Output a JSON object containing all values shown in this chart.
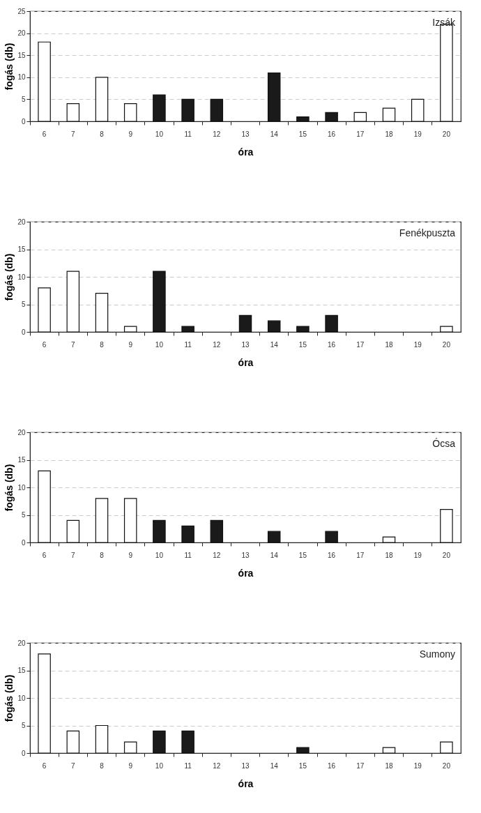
{
  "chart_data": [
    {
      "type": "bar",
      "categories": [
        "6",
        "7",
        "8",
        "9",
        "10",
        "11",
        "12",
        "13",
        "14",
        "15",
        "16",
        "17",
        "18",
        "19",
        "20"
      ],
      "values": [
        18,
        4,
        10,
        4,
        6,
        5,
        5,
        0,
        11,
        1,
        2,
        2,
        3,
        5,
        22
      ],
      "colors": [
        "#ffffff",
        "#ffffff",
        "#ffffff",
        "#ffffff",
        "#1a1a1a",
        "#1a1a1a",
        "#1a1a1a",
        "#1a1a1a",
        "#1a1a1a",
        "#1a1a1a",
        "#1a1a1a",
        "#ffffff",
        "#ffffff",
        "#ffffff",
        "#ffffff"
      ],
      "xlabel": "óra",
      "ylabel": "fogás (db)",
      "ylim": [
        0,
        25
      ],
      "yticks": [
        0,
        5,
        10,
        15,
        20,
        25
      ],
      "grid": "y",
      "annotations": [
        "Izsák"
      ]
    },
    {
      "type": "bar",
      "categories": [
        "6",
        "7",
        "8",
        "9",
        "10",
        "11",
        "12",
        "13",
        "14",
        "15",
        "16",
        "17",
        "18",
        "19",
        "20"
      ],
      "values": [
        8,
        11,
        7,
        1,
        11,
        1,
        0,
        3,
        2,
        1,
        3,
        0,
        0,
        0,
        1
      ],
      "colors": [
        "#ffffff",
        "#ffffff",
        "#ffffff",
        "#ffffff",
        "#1a1a1a",
        "#1a1a1a",
        "#1a1a1a",
        "#1a1a1a",
        "#1a1a1a",
        "#1a1a1a",
        "#1a1a1a",
        "#ffffff",
        "#ffffff",
        "#ffffff",
        "#ffffff"
      ],
      "xlabel": "óra",
      "ylabel": "fogás (db)",
      "ylim": [
        0,
        20
      ],
      "yticks": [
        0,
        5,
        10,
        15,
        20
      ],
      "grid": "y",
      "annotations": [
        "Fenékpuszta"
      ]
    },
    {
      "type": "bar",
      "categories": [
        "6",
        "7",
        "8",
        "9",
        "10",
        "11",
        "12",
        "13",
        "14",
        "15",
        "16",
        "17",
        "18",
        "19",
        "20"
      ],
      "values": [
        13,
        4,
        8,
        8,
        4,
        3,
        4,
        0,
        2,
        0,
        2,
        0,
        1,
        0,
        6
      ],
      "colors": [
        "#ffffff",
        "#ffffff",
        "#ffffff",
        "#ffffff",
        "#1a1a1a",
        "#1a1a1a",
        "#1a1a1a",
        "#1a1a1a",
        "#1a1a1a",
        "#1a1a1a",
        "#1a1a1a",
        "#ffffff",
        "#ffffff",
        "#ffffff",
        "#ffffff"
      ],
      "xlabel": "óra",
      "ylabel": "fogás (db)",
      "ylim": [
        0,
        20
      ],
      "yticks": [
        0,
        5,
        10,
        15,
        20
      ],
      "grid": "y",
      "annotations": [
        "Ócsa"
      ]
    },
    {
      "type": "bar",
      "categories": [
        "6",
        "7",
        "8",
        "9",
        "10",
        "11",
        "12",
        "13",
        "14",
        "15",
        "16",
        "17",
        "18",
        "19",
        "20"
      ],
      "values": [
        18,
        4,
        5,
        2,
        4,
        4,
        0,
        0,
        0,
        1,
        0,
        0,
        1,
        0,
        2
      ],
      "colors": [
        "#ffffff",
        "#ffffff",
        "#ffffff",
        "#ffffff",
        "#1a1a1a",
        "#1a1a1a",
        "#1a1a1a",
        "#1a1a1a",
        "#1a1a1a",
        "#1a1a1a",
        "#1a1a1a",
        "#ffffff",
        "#ffffff",
        "#ffffff",
        "#ffffff"
      ],
      "xlabel": "óra",
      "ylabel": "fogás (db)",
      "ylim": [
        0,
        20
      ],
      "yticks": [
        0,
        5,
        10,
        15,
        20
      ],
      "grid": "y",
      "annotations": [
        "Sumony"
      ]
    }
  ]
}
